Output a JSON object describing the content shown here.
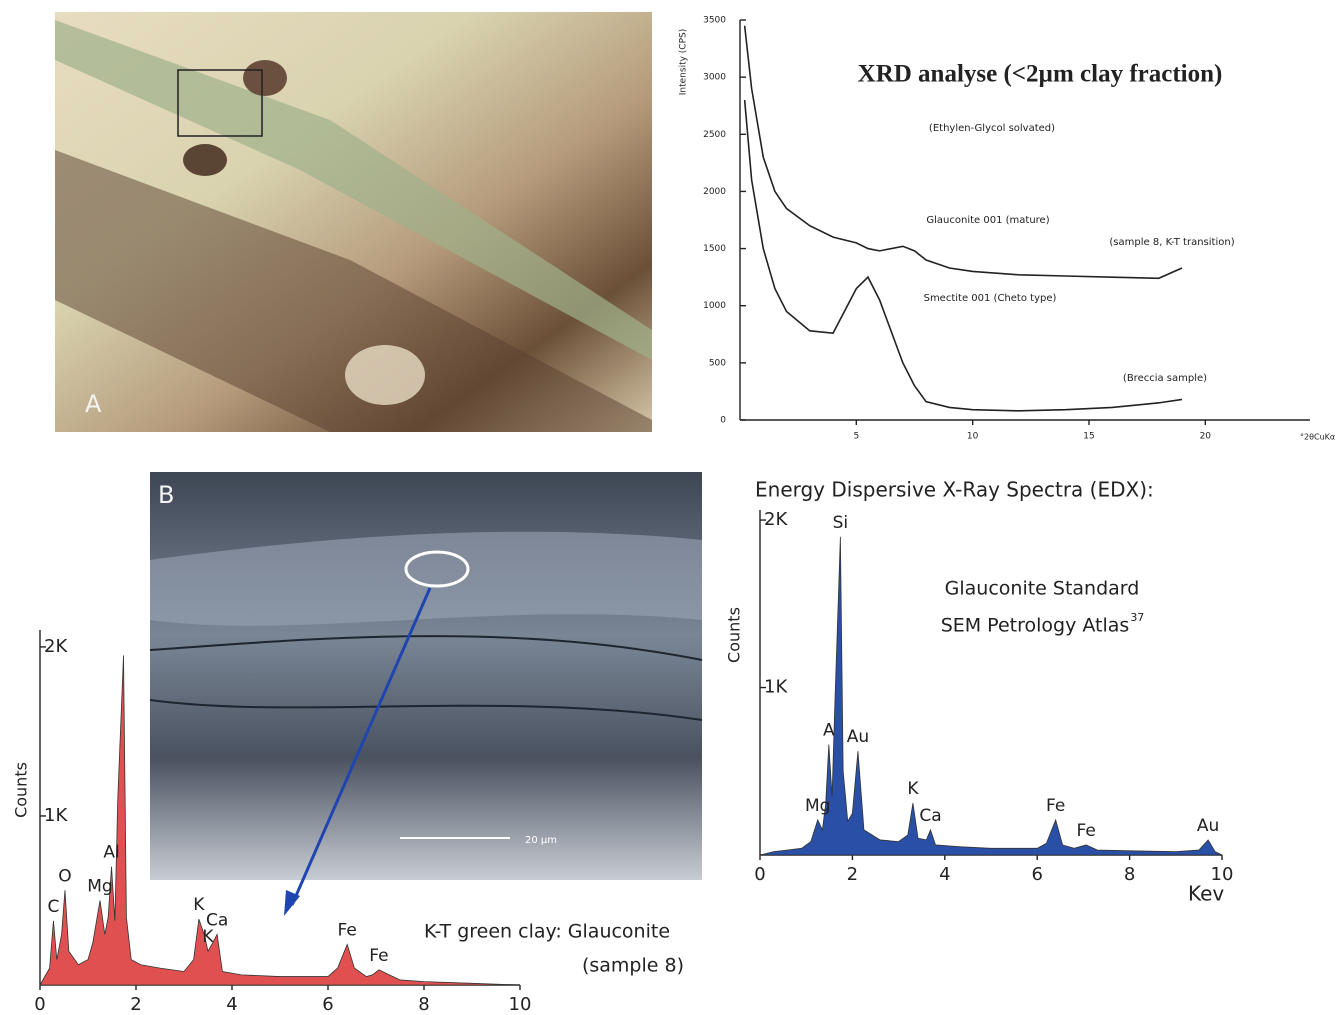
{
  "panels": {
    "a_label": "A",
    "b_label": "B",
    "sem_scale": "20 µm"
  },
  "chart_data": [
    {
      "type": "line",
      "title": "XRD analyse (<2µm clay fraction)",
      "subtitle": "(Ethylen-Glycol solvated)",
      "y_label": "Intensity (CPS)",
      "x_label": "°2θCuKα",
      "xlim": [
        0,
        24.5
      ],
      "ylim": [
        0,
        3500
      ],
      "xticks": [
        5,
        10,
        15,
        20
      ],
      "yticks": [
        0,
        500,
        1000,
        1500,
        2000,
        2500,
        3000,
        3500
      ],
      "x": [
        0.2,
        0.5,
        1,
        1.5,
        2,
        3,
        4,
        5,
        5.5,
        6,
        7,
        7.5,
        8,
        9,
        10,
        12,
        14,
        16,
        18,
        19
      ],
      "series": [
        {
          "name": "Glauconite 001 (mature)",
          "color": "#222222",
          "values": [
            3450,
            2900,
            2300,
            2000,
            1850,
            1700,
            1600,
            1550,
            1500,
            1480,
            1520,
            1480,
            1400,
            1330,
            1300,
            1270,
            1260,
            1250,
            1240,
            1330
          ]
        },
        {
          "name": "Smectite 001 (Cheto type)",
          "color": "#222222",
          "values": [
            2800,
            2100,
            1500,
            1150,
            950,
            780,
            760,
            1150,
            1250,
            1050,
            500,
            300,
            160,
            110,
            90,
            80,
            90,
            110,
            150,
            180
          ]
        }
      ],
      "annotations": [
        "(sample 8, K-T transition)",
        "(Breccia sample)"
      ]
    },
    {
      "type": "area",
      "y_label": "Counts",
      "color": "#e05050",
      "xlim": [
        0,
        10
      ],
      "ylim": [
        0,
        2100
      ],
      "xticks": [
        0,
        2,
        4,
        6,
        8,
        10
      ],
      "yticks": [
        {
          "value": 1000,
          "label": "1K"
        },
        {
          "value": 2000,
          "label": "2K"
        }
      ],
      "x": [
        0,
        0.2,
        0.28,
        0.35,
        0.45,
        0.52,
        0.6,
        0.8,
        1.0,
        1.1,
        1.25,
        1.35,
        1.42,
        1.49,
        1.56,
        1.62,
        1.74,
        1.8,
        1.9,
        2.1,
        2.5,
        3.0,
        3.2,
        3.31,
        3.42,
        3.5,
        3.6,
        3.69,
        3.8,
        4.2,
        5.0,
        6.0,
        6.2,
        6.4,
        6.55,
        6.8,
        6.93,
        7.06,
        7.5,
        8,
        9,
        10
      ],
      "values": [
        0,
        100,
        380,
        150,
        300,
        560,
        200,
        120,
        150,
        250,
        500,
        300,
        400,
        700,
        380,
        1100,
        1950,
        400,
        150,
        120,
        100,
        80,
        150,
        390,
        300,
        200,
        250,
        300,
        80,
        60,
        50,
        50,
        100,
        240,
        100,
        50,
        60,
        90,
        30,
        20,
        10,
        0
      ],
      "peak_labels": [
        {
          "label": "C",
          "x": 0.28
        },
        {
          "label": "O",
          "x": 0.52
        },
        {
          "label": "Mg",
          "x": 1.25
        },
        {
          "label": "Al",
          "x": 1.49
        },
        {
          "label": "K",
          "x": 3.31
        },
        {
          "label": "K",
          "x": 3.5
        },
        {
          "label": "Ca",
          "x": 3.69
        },
        {
          "label": "Fe",
          "x": 6.4
        },
        {
          "label": "Fe",
          "x": 7.06
        }
      ],
      "annotations": [
        "K-T green clay: Glauconite",
        "(sample 8)"
      ]
    },
    {
      "type": "area",
      "title": "Energy Dispersive X-Ray Spectra (EDX):",
      "y_label": "Counts",
      "x_label": "Kev",
      "color": "#2a4fa6",
      "xlim": [
        0,
        10
      ],
      "ylim": [
        0,
        2060
      ],
      "xticks": [
        0,
        2,
        4,
        6,
        8,
        10
      ],
      "yticks": [
        {
          "value": 1000,
          "label": "1K"
        },
        {
          "value": 2000,
          "label": "2K"
        }
      ],
      "x": [
        0,
        0.3,
        0.6,
        0.9,
        1.1,
        1.25,
        1.35,
        1.42,
        1.49,
        1.56,
        1.62,
        1.74,
        1.8,
        1.9,
        2.0,
        2.12,
        2.25,
        2.6,
        3.0,
        3.2,
        3.31,
        3.42,
        3.6,
        3.69,
        3.8,
        4.3,
        5.0,
        6.0,
        6.2,
        6.4,
        6.55,
        6.8,
        7.06,
        7.3,
        8.0,
        9.0,
        9.5,
        9.7,
        9.85,
        10
      ],
      "values": [
        0,
        20,
        30,
        40,
        80,
        210,
        150,
        300,
        660,
        350,
        900,
        1900,
        500,
        200,
        250,
        620,
        150,
        90,
        80,
        120,
        310,
        100,
        90,
        150,
        60,
        50,
        40,
        40,
        70,
        210,
        60,
        40,
        60,
        30,
        25,
        20,
        30,
        90,
        20,
        0
      ],
      "peak_labels": [
        {
          "label": "Mg",
          "x": 1.25
        },
        {
          "label": "A",
          "x": 1.49
        },
        {
          "label": "Si",
          "x": 1.74
        },
        {
          "label": "Au",
          "x": 2.12
        },
        {
          "label": "K",
          "x": 3.31
        },
        {
          "label": "Ca",
          "x": 3.69
        },
        {
          "label": "Fe",
          "x": 6.4
        },
        {
          "label": "Fe",
          "x": 7.06
        },
        {
          "label": "Au",
          "x": 9.7
        }
      ],
      "annotations": [
        "Glauconite Standard",
        "SEM Petrology Atlas"
      ],
      "reference": "37"
    }
  ]
}
